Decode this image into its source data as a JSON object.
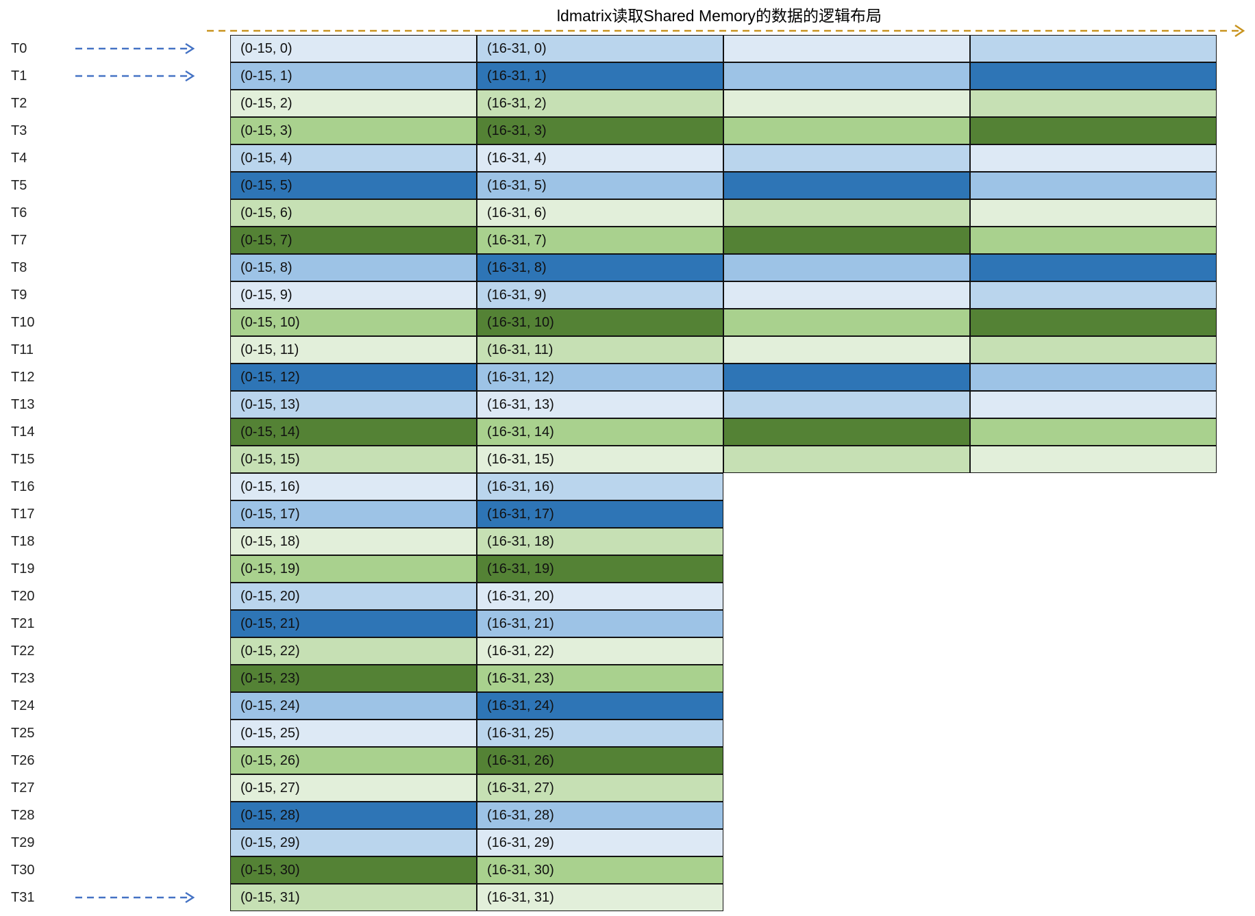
{
  "title": "ldmatrix读取Shared Memory的数据的逻辑布局",
  "colors": {
    "c0": "#dde9f5",
    "c1": "#bad5ed",
    "c2": "#9dc3e6",
    "c3": "#2e75b6",
    "c4": "#e2efda",
    "c5": "#c6e0b4",
    "c6": "#a9d18e",
    "c7": "#548235",
    "title_arrow": "#c8931e",
    "thread_arrow": "#4472c4"
  },
  "rows": [
    {
      "thread": "T0",
      "cells": [
        {
          "text": "(0-15, 0)",
          "color": "c0"
        },
        {
          "text": "(16-31, 0)",
          "color": "c1"
        },
        {
          "text": "",
          "color": "c0"
        },
        {
          "text": "",
          "color": "c1"
        }
      ]
    },
    {
      "thread": "T1",
      "cells": [
        {
          "text": "(0-15, 1)",
          "color": "c2"
        },
        {
          "text": "(16-31, 1)",
          "color": "c3"
        },
        {
          "text": "",
          "color": "c2"
        },
        {
          "text": "",
          "color": "c3"
        }
      ]
    },
    {
      "thread": "T2",
      "cells": [
        {
          "text": "(0-15, 2)",
          "color": "c4"
        },
        {
          "text": "(16-31, 2)",
          "color": "c5"
        },
        {
          "text": "",
          "color": "c4"
        },
        {
          "text": "",
          "color": "c5"
        }
      ]
    },
    {
      "thread": "T3",
      "cells": [
        {
          "text": "(0-15, 3)",
          "color": "c6"
        },
        {
          "text": "(16-31, 3)",
          "color": "c7"
        },
        {
          "text": "",
          "color": "c6"
        },
        {
          "text": "",
          "color": "c7"
        }
      ]
    },
    {
      "thread": "T4",
      "cells": [
        {
          "text": "(0-15, 4)",
          "color": "c1"
        },
        {
          "text": "(16-31, 4)",
          "color": "c0"
        },
        {
          "text": "",
          "color": "c1"
        },
        {
          "text": "",
          "color": "c0"
        }
      ]
    },
    {
      "thread": "T5",
      "cells": [
        {
          "text": "(0-15, 5)",
          "color": "c3"
        },
        {
          "text": "(16-31, 5)",
          "color": "c2"
        },
        {
          "text": "",
          "color": "c3"
        },
        {
          "text": "",
          "color": "c2"
        }
      ]
    },
    {
      "thread": "T6",
      "cells": [
        {
          "text": "(0-15, 6)",
          "color": "c5"
        },
        {
          "text": "(16-31, 6)",
          "color": "c4"
        },
        {
          "text": "",
          "color": "c5"
        },
        {
          "text": "",
          "color": "c4"
        }
      ]
    },
    {
      "thread": "T7",
      "cells": [
        {
          "text": "(0-15, 7)",
          "color": "c7"
        },
        {
          "text": "(16-31, 7)",
          "color": "c6"
        },
        {
          "text": "",
          "color": "c7"
        },
        {
          "text": "",
          "color": "c6"
        }
      ]
    },
    {
      "thread": "T8",
      "cells": [
        {
          "text": "(0-15, 8)",
          "color": "c2"
        },
        {
          "text": "(16-31, 8)",
          "color": "c3"
        },
        {
          "text": "",
          "color": "c2"
        },
        {
          "text": "",
          "color": "c3"
        }
      ]
    },
    {
      "thread": "T9",
      "cells": [
        {
          "text": "(0-15, 9)",
          "color": "c0"
        },
        {
          "text": "(16-31, 9)",
          "color": "c1"
        },
        {
          "text": "",
          "color": "c0"
        },
        {
          "text": "",
          "color": "c1"
        }
      ]
    },
    {
      "thread": "T10",
      "cells": [
        {
          "text": "(0-15, 10)",
          "color": "c6"
        },
        {
          "text": "(16-31, 10)",
          "color": "c7"
        },
        {
          "text": "",
          "color": "c6"
        },
        {
          "text": "",
          "color": "c7"
        }
      ]
    },
    {
      "thread": "T11",
      "cells": [
        {
          "text": "(0-15, 11)",
          "color": "c4"
        },
        {
          "text": "(16-31, 11)",
          "color": "c5"
        },
        {
          "text": "",
          "color": "c4"
        },
        {
          "text": "",
          "color": "c5"
        }
      ]
    },
    {
      "thread": "T12",
      "cells": [
        {
          "text": "(0-15, 12)",
          "color": "c3"
        },
        {
          "text": "(16-31, 12)",
          "color": "c2"
        },
        {
          "text": "",
          "color": "c3"
        },
        {
          "text": "",
          "color": "c2"
        }
      ]
    },
    {
      "thread": "T13",
      "cells": [
        {
          "text": "(0-15, 13)",
          "color": "c1"
        },
        {
          "text": "(16-31, 13)",
          "color": "c0"
        },
        {
          "text": "",
          "color": "c1"
        },
        {
          "text": "",
          "color": "c0"
        }
      ]
    },
    {
      "thread": "T14",
      "cells": [
        {
          "text": "(0-15, 14)",
          "color": "c7"
        },
        {
          "text": "(16-31, 14)",
          "color": "c6"
        },
        {
          "text": "",
          "color": "c7"
        },
        {
          "text": "",
          "color": "c6"
        }
      ]
    },
    {
      "thread": "T15",
      "cells": [
        {
          "text": "(0-15, 15)",
          "color": "c5"
        },
        {
          "text": "(16-31, 15)",
          "color": "c4"
        },
        {
          "text": "",
          "color": "c5"
        },
        {
          "text": "",
          "color": "c4"
        }
      ]
    },
    {
      "thread": "T16",
      "cells": [
        {
          "text": "(0-15, 16)",
          "color": "c0"
        },
        {
          "text": "(16-31, 16)",
          "color": "c1"
        }
      ]
    },
    {
      "thread": "T17",
      "cells": [
        {
          "text": "(0-15, 17)",
          "color": "c2"
        },
        {
          "text": "(16-31, 17)",
          "color": "c3"
        }
      ]
    },
    {
      "thread": "T18",
      "cells": [
        {
          "text": "(0-15, 18)",
          "color": "c4"
        },
        {
          "text": "(16-31, 18)",
          "color": "c5"
        }
      ]
    },
    {
      "thread": "T19",
      "cells": [
        {
          "text": "(0-15, 19)",
          "color": "c6"
        },
        {
          "text": "(16-31, 19)",
          "color": "c7"
        }
      ]
    },
    {
      "thread": "T20",
      "cells": [
        {
          "text": "(0-15, 20)",
          "color": "c1"
        },
        {
          "text": "(16-31, 20)",
          "color": "c0"
        }
      ]
    },
    {
      "thread": "T21",
      "cells": [
        {
          "text": "(0-15, 21)",
          "color": "c3"
        },
        {
          "text": "(16-31, 21)",
          "color": "c2"
        }
      ]
    },
    {
      "thread": "T22",
      "cells": [
        {
          "text": "(0-15, 22)",
          "color": "c5"
        },
        {
          "text": "(16-31, 22)",
          "color": "c4"
        }
      ]
    },
    {
      "thread": "T23",
      "cells": [
        {
          "text": "(0-15, 23)",
          "color": "c7"
        },
        {
          "text": "(16-31, 23)",
          "color": "c6"
        }
      ]
    },
    {
      "thread": "T24",
      "cells": [
        {
          "text": "(0-15, 24)",
          "color": "c2"
        },
        {
          "text": "(16-31, 24)",
          "color": "c3"
        }
      ]
    },
    {
      "thread": "T25",
      "cells": [
        {
          "text": "(0-15, 25)",
          "color": "c0"
        },
        {
          "text": "(16-31, 25)",
          "color": "c1"
        }
      ]
    },
    {
      "thread": "T26",
      "cells": [
        {
          "text": "(0-15, 26)",
          "color": "c6"
        },
        {
          "text": "(16-31, 26)",
          "color": "c7"
        }
      ]
    },
    {
      "thread": "T27",
      "cells": [
        {
          "text": "(0-15, 27)",
          "color": "c4"
        },
        {
          "text": "(16-31, 27)",
          "color": "c5"
        }
      ]
    },
    {
      "thread": "T28",
      "cells": [
        {
          "text": "(0-15, 28)",
          "color": "c3"
        },
        {
          "text": "(16-31, 28)",
          "color": "c2"
        }
      ]
    },
    {
      "thread": "T29",
      "cells": [
        {
          "text": "(0-15, 29)",
          "color": "c1"
        },
        {
          "text": "(16-31, 29)",
          "color": "c0"
        }
      ]
    },
    {
      "thread": "T30",
      "cells": [
        {
          "text": "(0-15, 30)",
          "color": "c7"
        },
        {
          "text": "(16-31, 30)",
          "color": "c6"
        }
      ]
    },
    {
      "thread": "T31",
      "cells": [
        {
          "text": "(0-15, 31)",
          "color": "c5"
        },
        {
          "text": "(16-31, 31)",
          "color": "c4"
        }
      ]
    }
  ],
  "arrow_rows": [
    0,
    1,
    31
  ]
}
